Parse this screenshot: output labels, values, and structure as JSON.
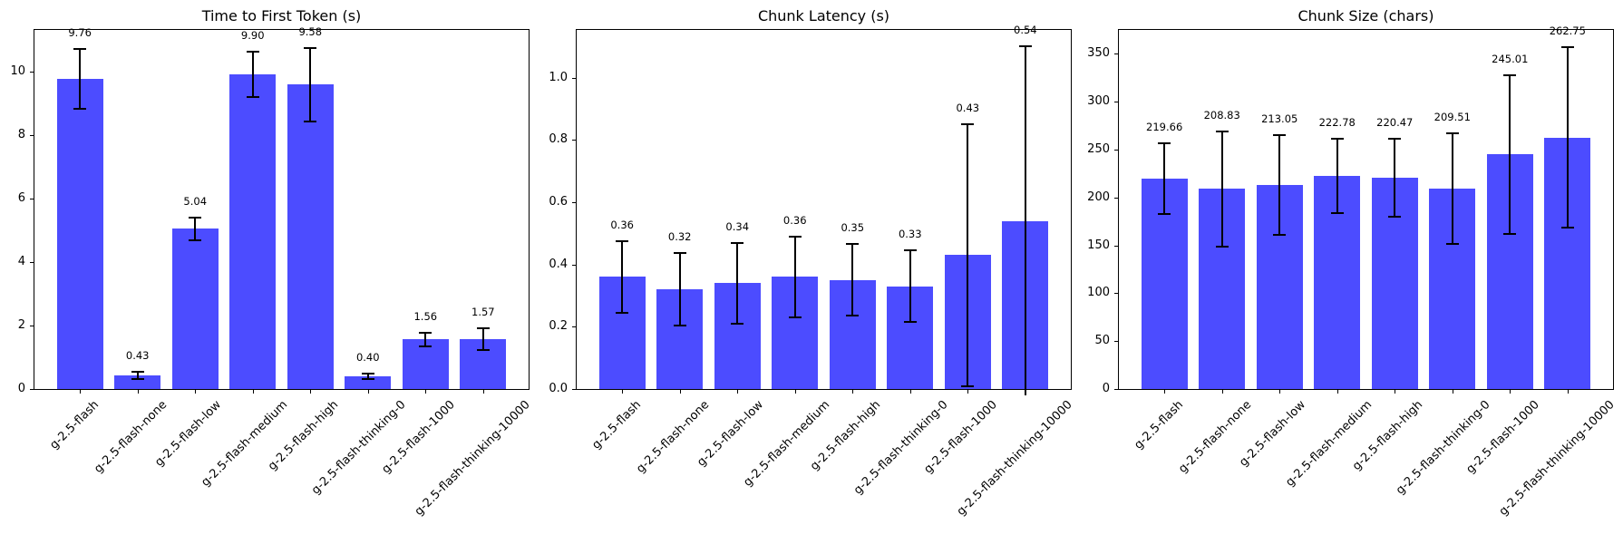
{
  "figure": {
    "bar_color": "#4c4cff",
    "error_color": "#000000"
  },
  "chart_data": [
    {
      "type": "bar",
      "title": "Time to First Token (s)",
      "xlabel": "",
      "ylabel": "",
      "categories": [
        "g-2.5-flash",
        "g-2.5-flash-none",
        "g-2.5-flash-low",
        "g-2.5-flash-medium",
        "g-2.5-flash-high",
        "g-2.5-flash-thinking-0",
        "g-2.5-flash-1000",
        "g-2.5-flash-thinking-10000"
      ],
      "values": [
        9.76,
        0.43,
        5.04,
        9.9,
        9.58,
        0.4,
        1.56,
        1.57
      ],
      "value_labels": [
        "9.76",
        "0.43",
        "5.04",
        "9.90",
        "9.58",
        "0.40",
        "1.56",
        "1.57"
      ],
      "errors": [
        0.93,
        0.11,
        0.36,
        0.72,
        1.15,
        0.08,
        0.21,
        0.34
      ],
      "ylim": [
        0,
        11.3
      ],
      "yticks": [
        0,
        2,
        4,
        6,
        8,
        10
      ],
      "ytick_labels": [
        "0",
        "2",
        "4",
        "6",
        "8",
        "10"
      ],
      "grid": false,
      "legend": null
    },
    {
      "type": "bar",
      "title": "Chunk Latency (s)",
      "xlabel": "",
      "ylabel": "",
      "categories": [
        "g-2.5-flash",
        "g-2.5-flash-none",
        "g-2.5-flash-low",
        "g-2.5-flash-medium",
        "g-2.5-flash-high",
        "g-2.5-flash-thinking-0",
        "g-2.5-flash-1000",
        "g-2.5-flash-thinking-10000"
      ],
      "values": [
        0.36,
        0.32,
        0.34,
        0.36,
        0.35,
        0.33,
        0.43,
        0.54
      ],
      "value_labels": [
        "0.36",
        "0.32",
        "0.34",
        "0.36",
        "0.35",
        "0.33",
        "0.43",
        "0.54"
      ],
      "errors": [
        0.115,
        0.117,
        0.13,
        0.13,
        0.115,
        0.115,
        0.42,
        0.56
      ],
      "ylim": [
        0,
        1.153
      ],
      "yticks": [
        0.0,
        0.2,
        0.4,
        0.6,
        0.8,
        1.0
      ],
      "ytick_labels": [
        "0.0",
        "0.2",
        "0.4",
        "0.6",
        "0.8",
        "1.0"
      ],
      "grid": false,
      "legend": null
    },
    {
      "type": "bar",
      "title": "Chunk Size (chars)",
      "xlabel": "",
      "ylabel": "",
      "categories": [
        "g-2.5-flash",
        "g-2.5-flash-none",
        "g-2.5-flash-low",
        "g-2.5-flash-medium",
        "g-2.5-flash-high",
        "g-2.5-flash-thinking-0",
        "g-2.5-flash-1000",
        "g-2.5-flash-thinking-10000"
      ],
      "values": [
        219.66,
        208.83,
        213.05,
        222.78,
        220.47,
        209.51,
        245.01,
        262.75
      ],
      "value_labels": [
        "219.66",
        "208.83",
        "213.05",
        "222.78",
        "220.47",
        "209.51",
        "245.01",
        "262.75"
      ],
      "errors": [
        37,
        60,
        52,
        39,
        41,
        58,
        83,
        94
      ],
      "ylim": [
        0,
        375
      ],
      "yticks": [
        0,
        50,
        100,
        150,
        200,
        250,
        300,
        350
      ],
      "ytick_labels": [
        "0",
        "50",
        "100",
        "150",
        "200",
        "250",
        "300",
        "350"
      ],
      "grid": false,
      "legend": null
    }
  ]
}
